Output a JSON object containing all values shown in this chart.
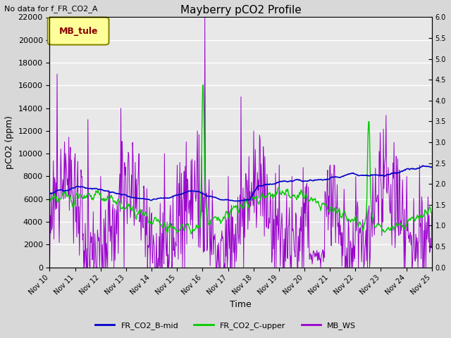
{
  "title": "Mayberry pCO2 Profile",
  "subtitle": "No data for f_FR_CO2_A",
  "xlabel": "Time",
  "ylabel_left": "pCO2 (ppm)",
  "ylim_left": [
    0,
    22000
  ],
  "ylim_right": [
    0,
    6.0
  ],
  "x_tick_labels": [
    "Nov 10",
    "Nov 11",
    "Nov 12",
    "Nov 13",
    "Nov 14",
    "Nov 15",
    "Nov 16",
    "Nov 17",
    "Nov 18",
    "Nov 19",
    "Nov 20",
    "Nov 21",
    "Nov 22",
    "Nov 23",
    "Nov 24",
    "Nov 25"
  ],
  "legend_box_label": "MB_tule",
  "legend_box_color": "#ffff99",
  "legend_box_border": "#888800",
  "legend_box_text_color": "#880000",
  "bg_color": "#d8d8d8",
  "plot_bg_color": "#e8e8e8",
  "grid_color": "#ffffff",
  "color_blue": "#0000cc",
  "color_green": "#00cc00",
  "color_purple": "#9900cc",
  "n_points": 720,
  "seed": 123
}
